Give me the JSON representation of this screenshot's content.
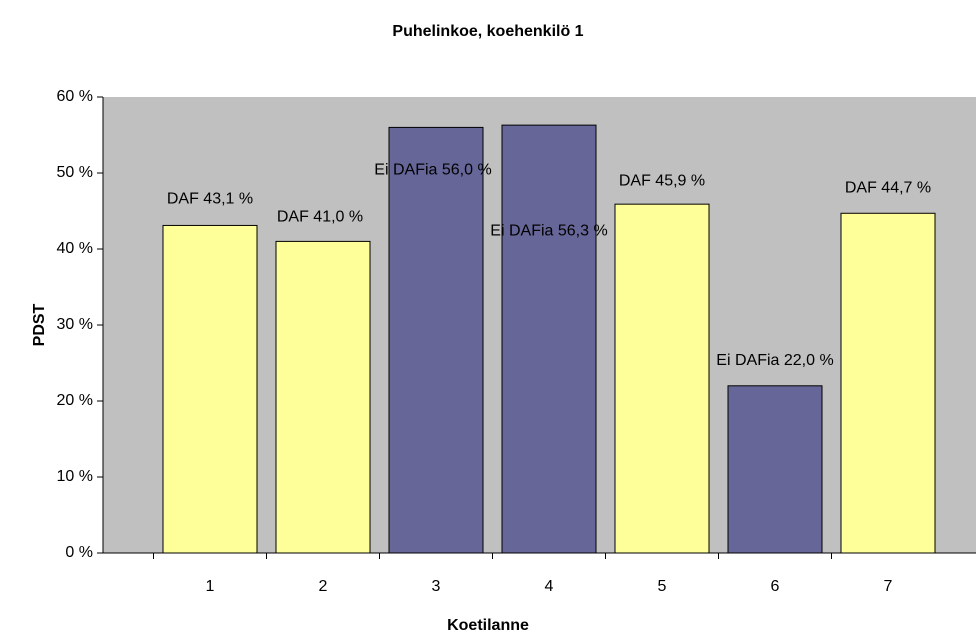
{
  "chart_data": {
    "type": "bar",
    "title": "Puhelinkoe, koehenkilö 1",
    "x_label": "Koetilanne",
    "y_label": "PDST",
    "categories": [
      "1",
      "2",
      "3",
      "4",
      "5",
      "6",
      "7"
    ],
    "values": [
      43.1,
      41.0,
      56.0,
      56.3,
      45.9,
      22.0,
      44.7
    ],
    "value_labels": [
      "DAF 43,1 %",
      "DAF 41,0 %",
      "Ei DAFia 56,0 %",
      "Ei DAFia 56,3 %",
      "DAF 45,9 %",
      "Ei DAFia 22,0 %",
      "DAF 44,7 %"
    ],
    "colors": [
      "#FFFF99",
      "#FFFF99",
      "#666699",
      "#666699",
      "#FFFF99",
      "#666699",
      "#FFFF99"
    ],
    "ylim": [
      0,
      60
    ],
    "yticks": [
      {
        "value": 0,
        "label": "0 %"
      },
      {
        "value": 10,
        "label": "10 %"
      },
      {
        "value": 20,
        "label": "20 %"
      },
      {
        "value": 30,
        "label": "30 %"
      },
      {
        "value": 40,
        "label": "40 %"
      },
      {
        "value": 50,
        "label": "50 %"
      },
      {
        "value": 60,
        "label": "60 %"
      }
    ],
    "grid": false
  }
}
